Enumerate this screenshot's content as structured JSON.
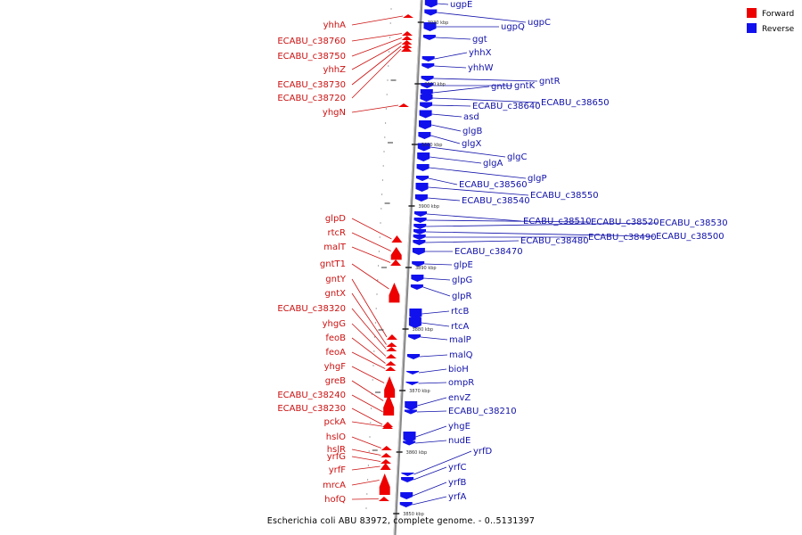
{
  "caption": "Escherichia coli ABU 83972, complete genome. - 0..5131397",
  "legend": [
    {
      "label": "Forward",
      "color": "#ee0000"
    },
    {
      "label": "Reverse",
      "color": "#1111ee"
    }
  ],
  "colors": {
    "forward_label": "#cc1111",
    "reverse_label": "#1111aa",
    "forward_feature": "#ee0000",
    "reverse_feature": "#1111ee",
    "backbone": "#888888"
  },
  "scale_ticks": [
    "3930 kbp",
    "3920 kbp",
    "3910 kbp",
    "3900 kbp",
    "3890 kbp",
    "3880 kbp",
    "3870 kbp",
    "3860 kbp",
    "3850 kbp"
  ],
  "forward_genes": [
    "yhhA",
    "ECABU_c38760",
    "ECABU_c38750",
    "yhhZ",
    "ECABU_c38730",
    "ECABU_c38720",
    "yhgN",
    "glpD",
    "rtcR",
    "malT",
    "gntT1",
    "gntY",
    "gntX",
    "ECABU_c38320",
    "yhgG",
    "feoB",
    "feoA",
    "yhgF",
    "greB",
    "ECABU_c38240",
    "ECABU_c38230",
    "pckA",
    "hslO",
    "hslR",
    "yrfG",
    "yrfF",
    "mrcA",
    "hofQ"
  ],
  "reverse_genes": [
    "ugpE",
    "ugpC",
    "ugpQ",
    "ggt",
    "yhhX",
    "yhhW",
    "gntR",
    "gntK",
    "gntU",
    "ECABU_c38650",
    "ECABU_c38640",
    "asd",
    "glgB",
    "glgX",
    "glgC",
    "glgA",
    "glgP",
    "ECABU_c38560",
    "ECABU_c38550",
    "ECABU_c38540",
    "ECABU_c38510",
    "ECABU_c38520",
    "ECABU_c38530",
    "ECABU_c38500",
    "ECABU_c38490",
    "ECABU_c38480",
    "ECABU_c38470",
    "glpE",
    "glpG",
    "glpR",
    "rtcB",
    "rtcA",
    "malP",
    "malQ",
    "bioH",
    "ompR",
    "envZ",
    "ECABU_c38210",
    "yhgE",
    "nudE",
    "yrfD",
    "yrfC",
    "yrfB",
    "yrfA"
  ]
}
